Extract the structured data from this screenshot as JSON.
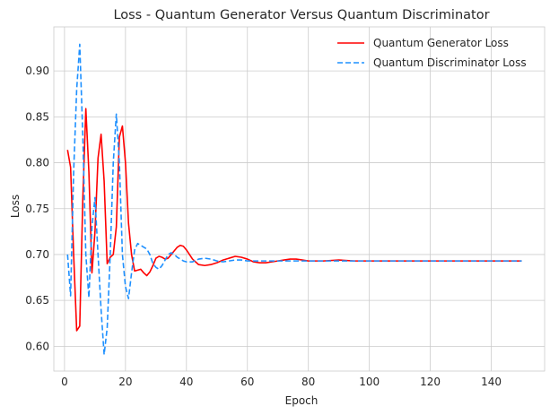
{
  "chart_data": {
    "type": "line",
    "title": "Loss - Quantum Generator Versus Quantum Discriminator",
    "xlabel": "Epoch",
    "ylabel": "Loss",
    "xlim": [
      -3.5,
      157.5
    ],
    "ylim": [
      0.573,
      0.948
    ],
    "xticks": [
      0,
      20,
      40,
      60,
      80,
      100,
      120,
      140
    ],
    "yticks": [
      0.6,
      0.65,
      0.7,
      0.75,
      0.8,
      0.85,
      0.9
    ],
    "xtick_labels": [
      "0",
      "20",
      "40",
      "60",
      "80",
      "100",
      "120",
      "140"
    ],
    "ytick_labels": [
      "0.60",
      "0.65",
      "0.70",
      "0.75",
      "0.80",
      "0.85",
      "0.90"
    ],
    "grid": true,
    "legend_position": "top-right",
    "series": [
      {
        "name": "Quantum Generator Loss",
        "color": "#ff0000",
        "style": "solid",
        "x": [
          1,
          2,
          3,
          4,
          5,
          6,
          7,
          8,
          9,
          10,
          11,
          12,
          13,
          14,
          15,
          16,
          17,
          18,
          19,
          20,
          21,
          22,
          23,
          24,
          25,
          26,
          27,
          28,
          29,
          30,
          31,
          32,
          33,
          34,
          35,
          36,
          37,
          38,
          39,
          40,
          42,
          44,
          46,
          48,
          50,
          52,
          54,
          56,
          58,
          60,
          62,
          64,
          66,
          68,
          70,
          72,
          74,
          76,
          78,
          80,
          85,
          90,
          95,
          100,
          110,
          120,
          130,
          140,
          150
        ],
        "y": [
          0.814,
          0.795,
          0.7,
          0.617,
          0.622,
          0.76,
          0.859,
          0.79,
          0.68,
          0.725,
          0.805,
          0.831,
          0.78,
          0.69,
          0.697,
          0.7,
          0.73,
          0.828,
          0.84,
          0.8,
          0.734,
          0.7,
          0.682,
          0.683,
          0.684,
          0.68,
          0.677,
          0.681,
          0.688,
          0.696,
          0.698,
          0.697,
          0.695,
          0.696,
          0.7,
          0.704,
          0.708,
          0.71,
          0.709,
          0.705,
          0.695,
          0.689,
          0.688,
          0.689,
          0.691,
          0.694,
          0.696,
          0.698,
          0.697,
          0.695,
          0.692,
          0.691,
          0.691,
          0.692,
          0.693,
          0.694,
          0.695,
          0.695,
          0.694,
          0.693,
          0.693,
          0.694,
          0.693,
          0.693,
          0.693,
          0.693,
          0.693,
          0.693,
          0.693
        ]
      },
      {
        "name": "Quantum Discriminator Loss",
        "color": "#1e90ff",
        "style": "dashed",
        "x": [
          1,
          2,
          3,
          4,
          5,
          6,
          7,
          8,
          9,
          10,
          11,
          12,
          13,
          14,
          15,
          16,
          17,
          18,
          19,
          20,
          21,
          22,
          23,
          24,
          25,
          26,
          27,
          28,
          29,
          30,
          31,
          32,
          33,
          34,
          35,
          36,
          37,
          38,
          39,
          40,
          42,
          44,
          46,
          48,
          50,
          52,
          54,
          56,
          58,
          60,
          62,
          64,
          66,
          68,
          70,
          72,
          74,
          76,
          78,
          80,
          85,
          90,
          95,
          100,
          110,
          120,
          130,
          140,
          150
        ],
        "y": [
          0.7,
          0.655,
          0.79,
          0.88,
          0.929,
          0.83,
          0.7,
          0.653,
          0.73,
          0.762,
          0.7,
          0.64,
          0.591,
          0.62,
          0.7,
          0.8,
          0.853,
          0.8,
          0.7,
          0.665,
          0.652,
          0.68,
          0.705,
          0.712,
          0.71,
          0.708,
          0.706,
          0.7,
          0.69,
          0.686,
          0.684,
          0.688,
          0.694,
          0.7,
          0.702,
          0.7,
          0.697,
          0.695,
          0.693,
          0.692,
          0.692,
          0.695,
          0.696,
          0.695,
          0.693,
          0.692,
          0.693,
          0.694,
          0.694,
          0.693,
          0.693,
          0.693,
          0.693,
          0.693,
          0.693,
          0.693,
          0.693,
          0.693,
          0.693,
          0.693,
          0.693,
          0.693,
          0.693,
          0.693,
          0.693,
          0.693,
          0.693,
          0.693,
          0.693
        ]
      }
    ]
  }
}
